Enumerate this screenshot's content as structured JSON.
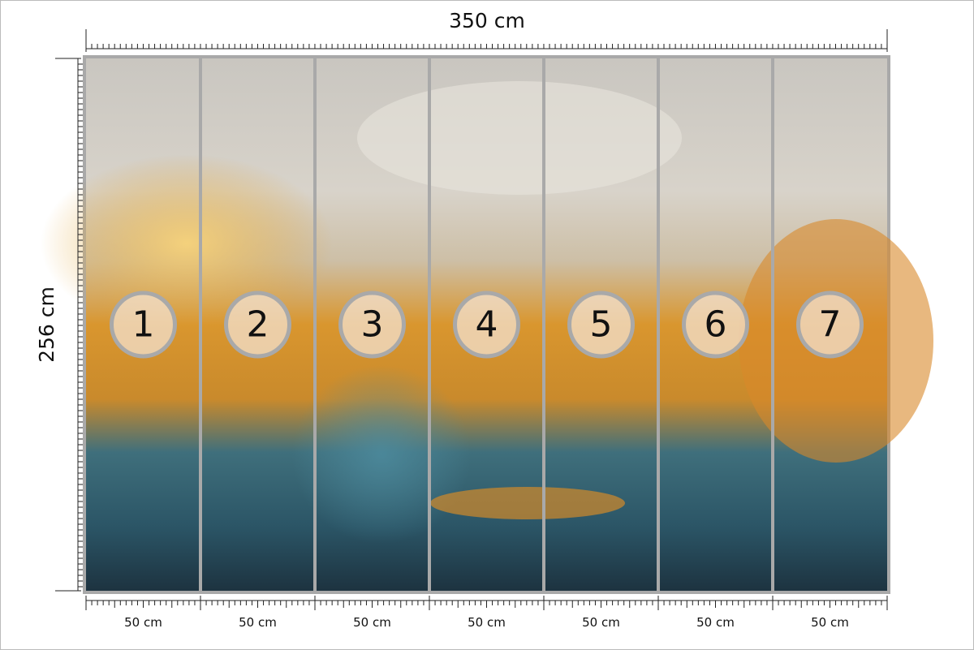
{
  "dimensions": {
    "width": "350 cm",
    "height": "256 cm"
  },
  "panels": [
    {
      "number": "1",
      "width": "50 cm"
    },
    {
      "number": "2",
      "width": "50 cm"
    },
    {
      "number": "3",
      "width": "50 cm"
    },
    {
      "number": "4",
      "width": "50 cm"
    },
    {
      "number": "5",
      "width": "50 cm"
    },
    {
      "number": "6",
      "width": "50 cm"
    },
    {
      "number": "7",
      "width": "50 cm"
    }
  ]
}
